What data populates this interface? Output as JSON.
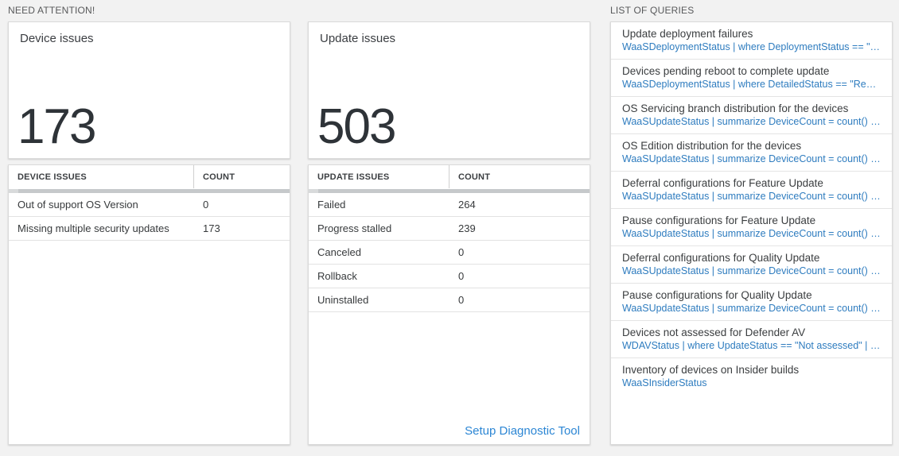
{
  "headers": {
    "need_attention": "NEED ATTENTION!",
    "list_of_queries": "LIST OF QUERIES"
  },
  "device_card": {
    "title": "Device issues",
    "count": "173",
    "table": {
      "name_header": "DEVICE ISSUES",
      "count_header": "COUNT",
      "rows": [
        {
          "label": "Out of support OS Version",
          "count": "0"
        },
        {
          "label": "Missing multiple security updates",
          "count": "173"
        }
      ]
    }
  },
  "update_card": {
    "title": "Update issues",
    "count": "503",
    "table": {
      "name_header": "UPDATE ISSUES",
      "count_header": "COUNT",
      "rows": [
        {
          "label": "Failed",
          "count": "264"
        },
        {
          "label": "Progress stalled",
          "count": "239"
        },
        {
          "label": "Canceled",
          "count": "0"
        },
        {
          "label": "Rollback",
          "count": "0"
        },
        {
          "label": "Uninstalled",
          "count": "0"
        }
      ]
    },
    "footer_link": "Setup Diagnostic Tool"
  },
  "queries": {
    "items": [
      {
        "title": "Update deployment failures",
        "query": "WaaSDeploymentStatus | where DeploymentStatus == \"Failed\" |..."
      },
      {
        "title": "Devices pending reboot to complete update",
        "query": "WaaSDeploymentStatus | where DetailedStatus == \"Reboot pend..."
      },
      {
        "title": "OS Servicing branch distribution for the devices",
        "query": "WaaSUpdateStatus | summarize DeviceCount = count() by OSSer..."
      },
      {
        "title": "OS Edition distribution for the devices",
        "query": "WaaSUpdateStatus | summarize DeviceCount = count() by OSEdit..."
      },
      {
        "title": "Deferral configurations for Feature Update",
        "query": "WaaSUpdateStatus | summarize DeviceCount = count() by Featur..."
      },
      {
        "title": "Pause configurations for Feature Update",
        "query": "WaaSUpdateStatus | summarize DeviceCount = count() by Featur..."
      },
      {
        "title": "Deferral configurations for Quality Update",
        "query": "WaaSUpdateStatus | summarize DeviceCount = count() by Qualit..."
      },
      {
        "title": "Pause configurations for Quality Update",
        "query": "WaaSUpdateStatus | summarize DeviceCount = count() by Qualit..."
      },
      {
        "title": "Devices not assessed for Defender AV",
        "query": "WDAVStatus | where UpdateStatus == \"Not assessed\" | render ta..."
      },
      {
        "title": "Inventory of devices on Insider builds",
        "query": "WaaSInsiderStatus"
      }
    ]
  },
  "colors": {
    "page_bg": "#f2f2f2",
    "query_link_blue": "#2e7cbf",
    "setup_link_blue": "#2c86d4",
    "big_number": "#2e3338",
    "scrollbar_strip": "#c6c9cb"
  }
}
